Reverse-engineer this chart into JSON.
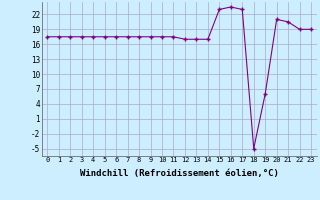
{
  "x": [
    0,
    1,
    2,
    3,
    4,
    5,
    6,
    7,
    8,
    9,
    10,
    11,
    12,
    13,
    14,
    15,
    16,
    17,
    18,
    19,
    20,
    21,
    22,
    23
  ],
  "y": [
    17.5,
    17.5,
    17.5,
    17.5,
    17.5,
    17.5,
    17.5,
    17.5,
    17.5,
    17.5,
    17.5,
    17.5,
    17.0,
    17.0,
    17.0,
    23.0,
    23.5,
    23.0,
    -5.0,
    6.0,
    21.0,
    20.5,
    19.0,
    19.0
  ],
  "line_color": "#800080",
  "marker": "+",
  "marker_size": 3,
  "marker_color": "#800080",
  "bg_color": "#cceeff",
  "grid_color": "#aaaacc",
  "xlabel": "Windchill (Refroidissement éolien,°C)",
  "xlabel_fontsize": 6.5,
  "yticks": [
    -5,
    -2,
    1,
    4,
    7,
    10,
    13,
    16,
    19,
    22
  ],
  "xtick_labels": [
    "0",
    "1",
    "2",
    "3",
    "4",
    "5",
    "6",
    "7",
    "8",
    "9",
    "10",
    "11",
    "12",
    "13",
    "14",
    "15",
    "16",
    "17",
    "18",
    "19",
    "20",
    "21",
    "22",
    "23"
  ],
  "ylim": [
    -6.5,
    24.5
  ],
  "xlim": [
    -0.5,
    23.5
  ]
}
